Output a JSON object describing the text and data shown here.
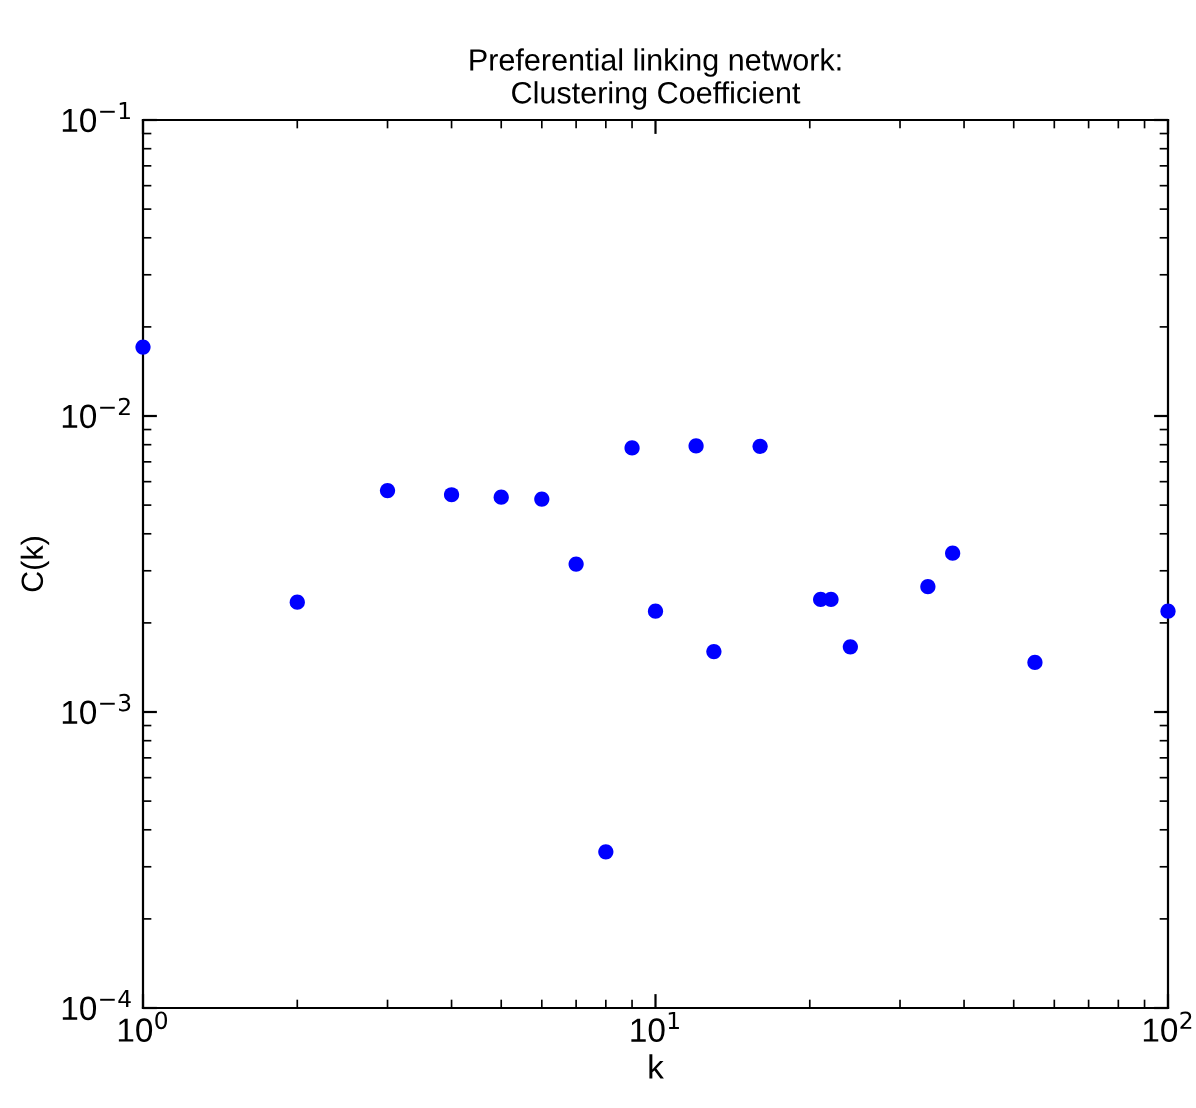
{
  "chart_data": {
    "type": "scatter",
    "title": "Preferential linking network:\nClustering Coefficient",
    "xlabel": "k",
    "ylabel": "C(k)",
    "log": "xy",
    "x": [
      1,
      2,
      3,
      4,
      5,
      6,
      7,
      8,
      9,
      10,
      12,
      13,
      16,
      21,
      22,
      24,
      34,
      38,
      55,
      100
    ],
    "series": [
      {
        "color": "#0000ff",
        "values": [
          0.0171,
          0.00235,
          0.0056,
          0.00542,
          0.00532,
          0.00524,
          0.00316,
          0.000337,
          0.0078,
          0.00219,
          0.00792,
          0.0016,
          0.0079,
          0.0024,
          0.0024,
          0.00166,
          0.00265,
          0.00344,
          0.00147,
          0.00219
        ]
      }
    ],
    "xlim": [
      1,
      100
    ],
    "ylim": [
      0.0001,
      0.1
    ],
    "xticks": [
      {
        "value": 1,
        "label": "10$^{0}$"
      },
      {
        "value": 10,
        "label": "10$^{1}$"
      },
      {
        "value": 100,
        "label": "10$^{2}$"
      }
    ],
    "yticks": [
      {
        "value": 0.0001,
        "label": "10$^{−4}$"
      },
      {
        "value": 0.001,
        "label": "10$^{−3}$"
      },
      {
        "value": 0.01,
        "label": "10$^{−2}$"
      },
      {
        "value": 0.1,
        "label": "10$^{−1}$"
      }
    ],
    "marker": "circle",
    "grid": false,
    "legend": false
  }
}
